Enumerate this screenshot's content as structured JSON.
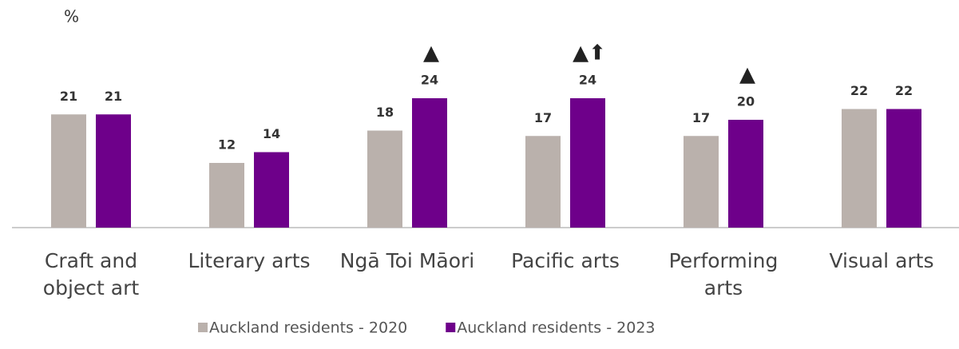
{
  "chart_data": {
    "type": "bar",
    "y_label": "%",
    "categories": [
      "Craft and object art",
      "Literary arts",
      "Ngā Toi Māori",
      "Pacific arts",
      "Performing arts",
      "Visual arts"
    ],
    "series": [
      {
        "name": "Auckland residents - 2020",
        "color": "#bab1ac",
        "values": [
          21,
          12,
          18,
          17,
          17,
          22
        ]
      },
      {
        "name": "Auckland residents - 2023",
        "color": "#6e008a",
        "values": [
          21,
          14,
          24,
          24,
          20,
          22
        ],
        "annotations": [
          null,
          null,
          "▲",
          "▲⬆",
          "▲",
          null
        ]
      }
    ],
    "ylim": [
      0,
      40
    ],
    "legend": "bottom"
  }
}
